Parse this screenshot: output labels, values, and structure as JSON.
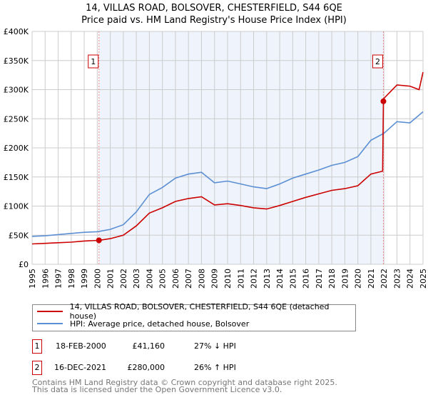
{
  "title": "14, VILLAS ROAD, BOLSOVER, CHESTERFIELD, S44 6QE",
  "subtitle": "Price paid vs. HM Land Registry's House Price Index (HPI)",
  "legend": {
    "property": "14, VILLAS ROAD, BOLSOVER, CHESTERFIELD, S44 6QE (detached house)",
    "hpi": "HPI: Average price, detached house, Bolsover"
  },
  "transactions": [
    {
      "num": "1",
      "date": "18-FEB-2000",
      "price": "£41,160",
      "delta": "27% ↓ HPI"
    },
    {
      "num": "2",
      "date": "16-DEC-2021",
      "price": "£280,000",
      "delta": "26% ↑ HPI"
    }
  ],
  "footer": [
    "Contains HM Land Registry data © Crown copyright and database right 2025.",
    "This data is licensed under the Open Government Licence v3.0."
  ],
  "chart_data": {
    "type": "line",
    "xlim": [
      1995,
      2025
    ],
    "ylim": [
      0,
      400000
    ],
    "yticks": [
      "£0",
      "£50K",
      "£100K",
      "£150K",
      "£200K",
      "£250K",
      "£300K",
      "£350K",
      "£400K"
    ],
    "xticks": [
      "1995",
      "1996",
      "1997",
      "1998",
      "1999",
      "2000",
      "2001",
      "2002",
      "2003",
      "2004",
      "2005",
      "2006",
      "2007",
      "2008",
      "2009",
      "2010",
      "2011",
      "2012",
      "2013",
      "2014",
      "2015",
      "2016",
      "2017",
      "2018",
      "2019",
      "2020",
      "2021",
      "2022",
      "2023",
      "2024",
      "2025"
    ],
    "colors": {
      "property": "#cc0000",
      "hpi": "#5b8fd4",
      "shade": "#eef3fc"
    },
    "sales": [
      {
        "x": 2000.13,
        "y": 41160,
        "label": "1"
      },
      {
        "x": 2021.96,
        "y": 280000,
        "label": "2"
      }
    ],
    "series": [
      {
        "name": "HPI",
        "x": [
          1995,
          1996,
          1997,
          1998,
          1999,
          2000,
          2001,
          2002,
          2003,
          2004,
          2005,
          2006,
          2007,
          2008,
          2009,
          2010,
          2011,
          2012,
          2013,
          2014,
          2015,
          2016,
          2017,
          2018,
          2019,
          2020,
          2021,
          2022,
          2023,
          2024,
          2025
        ],
        "y": [
          48000,
          49000,
          51000,
          53000,
          55000,
          56000,
          60000,
          68000,
          90000,
          120000,
          132000,
          148000,
          155000,
          158000,
          140000,
          143000,
          138000,
          133000,
          130000,
          138000,
          148000,
          155000,
          162000,
          170000,
          175000,
          185000,
          213000,
          225000,
          245000,
          243000,
          262000
        ]
      },
      {
        "name": "Property",
        "x": [
          1995,
          1996,
          1997,
          1998,
          1999,
          2000.13,
          2001,
          2002,
          2003,
          2004,
          2005,
          2006,
          2007,
          2008,
          2009,
          2010,
          2011,
          2012,
          2013,
          2014,
          2015,
          2016,
          2017,
          2018,
          2019,
          2020,
          2021,
          2021.9,
          2021.96,
          2022,
          2023,
          2024,
          2024.7,
          2025
        ],
        "y": [
          35000,
          36000,
          37000,
          38000,
          40000,
          41160,
          44000,
          50000,
          66000,
          88000,
          97000,
          108000,
          113000,
          116000,
          102000,
          104000,
          101000,
          97000,
          95000,
          101000,
          108000,
          115000,
          121000,
          127000,
          130000,
          135000,
          155000,
          160000,
          280000,
          285000,
          308000,
          306000,
          300000,
          330000
        ]
      }
    ]
  }
}
